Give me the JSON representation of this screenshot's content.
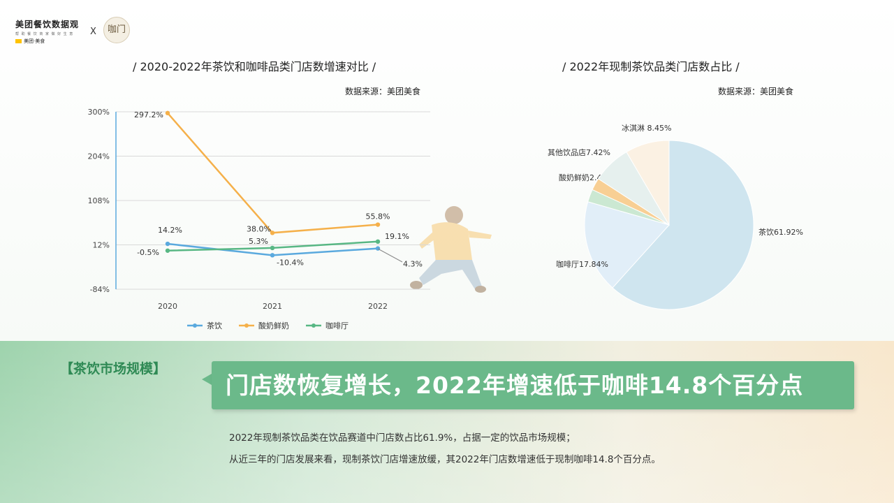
{
  "brand": {
    "name": "美团餐饮数据观",
    "tagline": "帮 助 餐 饮 商 家 做 好 生 意",
    "sub": "美团·美食",
    "times": "X",
    "partner": "咖门"
  },
  "left_chart": {
    "title": "/ 2020-2022年茶饮和咖啡品类门店数增速对比 /",
    "source": "数据来源：美团美食"
  },
  "right_chart": {
    "title": "/ 2022年现制茶饮品类门店数占比 /",
    "source": "数据来源：美团美食"
  },
  "chart_data": [
    {
      "type": "line",
      "title": "2020-2022年茶饮和咖啡品类门店数增速对比",
      "x": [
        "2020",
        "2021",
        "2022"
      ],
      "y_ticks": [
        "300%",
        "204%",
        "108%",
        "12%",
        "-84%"
      ],
      "ylim": [
        -84,
        300
      ],
      "grid": true,
      "legend_position": "bottom",
      "series": [
        {
          "name": "茶饮",
          "color": "#5aa9de",
          "values": [
            14.2,
            -10.4,
            4.3
          ],
          "labels": [
            "14.2%",
            "-10.4%",
            "4.3%"
          ]
        },
        {
          "name": "酸奶鲜奶",
          "color": "#f5b04a",
          "values": [
            297.2,
            38.0,
            55.8
          ],
          "labels": [
            "297.2%",
            "38.0%",
            "55.8%"
          ]
        },
        {
          "name": "咖啡厅",
          "color": "#58b784",
          "values": [
            -0.5,
            5.3,
            19.1
          ],
          "labels": [
            "-0.5%",
            "5.3%",
            "19.1%"
          ]
        }
      ]
    },
    {
      "type": "pie",
      "title": "2022年现制茶饮品类门店数占比",
      "slices": [
        {
          "name": "茶饮",
          "value": 61.92,
          "label": "茶饮61.92%",
          "color": "#cfe5ef"
        },
        {
          "name": "咖啡厅",
          "value": 17.84,
          "label": "咖啡厅17.84%",
          "color": "#e1eef8"
        },
        {
          "name": "酸奶鲜奶",
          "value": 2.44,
          "label": "酸奶鲜奶2.44%",
          "color": "#cbe8d2"
        },
        {
          "name": "其他饮品店",
          "value": 2.35,
          "label": "",
          "color": "#f8cf94"
        },
        {
          "name": "其他饮品店",
          "value": 7.42,
          "label": "其他饮品店7.42%",
          "color": "#e6f0ee"
        },
        {
          "name": "冰淇淋",
          "value": 8.45,
          "label": "冰淇淋 8.45%",
          "color": "#fbf1e3"
        }
      ]
    }
  ],
  "section": {
    "tag": "【茶饮市场规模】",
    "headline": "门店数恢复增长，2022年增速低于咖啡14.8个百分点",
    "body": [
      "2022年现制茶饮品类在饮品赛道中门店数占比61.9%，占据一定的饮品市场规模；",
      "从近三年的门店发展来看，现制茶饮门店增速放缓，其2022年门店数增速低于现制咖啡14.8个百分点。"
    ]
  }
}
